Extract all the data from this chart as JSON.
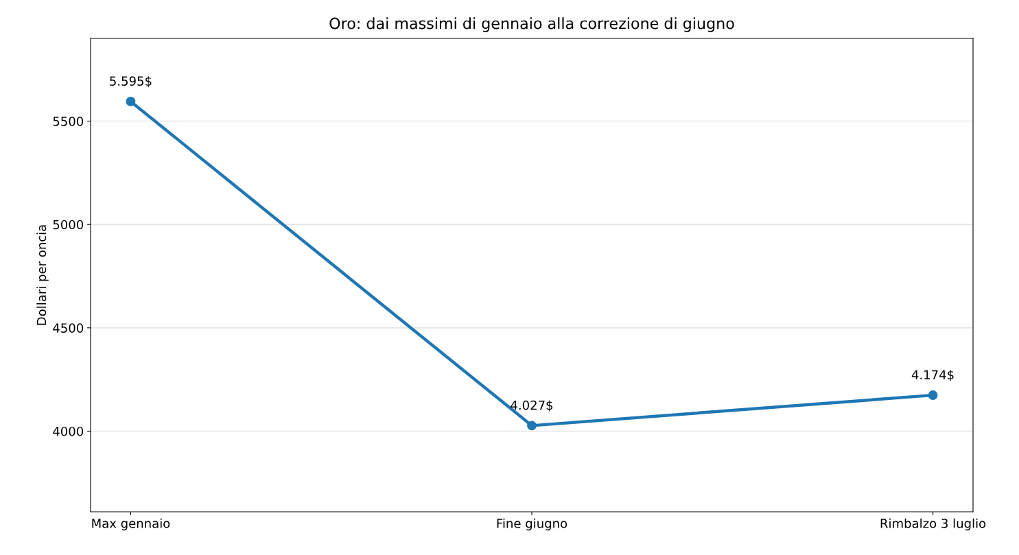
{
  "chart_data": {
    "type": "line",
    "title": "Oro: dai massimi di gennaio alla correzione di giugno",
    "ylabel": "Dollari per oncia",
    "categories": [
      "Max gennaio",
      "Fine giugno",
      "Rimbalzo 3 luglio"
    ],
    "series": [
      {
        "color": "#1f77b4",
        "values": [
          5595,
          4027,
          4174
        ],
        "value_labels": [
          "5.595$",
          "4.027$",
          "4.174$"
        ]
      }
    ],
    "ylim": [
      3610,
      5900
    ],
    "yticks": [
      4000,
      4500,
      5000,
      5500
    ],
    "grid": "y",
    "marker": "circle",
    "line_style": "solid"
  }
}
